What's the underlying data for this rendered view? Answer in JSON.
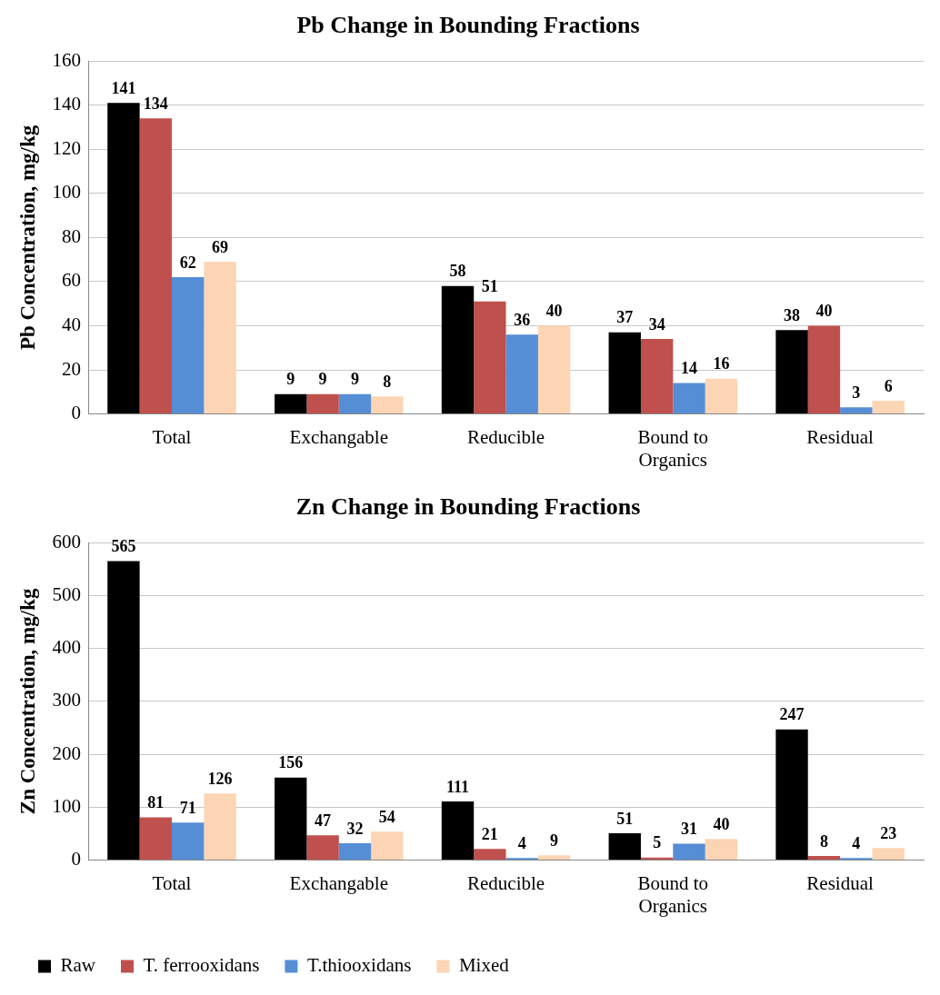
{
  "chart_data": [
    {
      "type": "bar",
      "title": "Pb Change in Bounding Fractions",
      "ylabel": "Pb Concentration, mg/kg",
      "categories": [
        "Total",
        "Exchangable",
        "Reducible",
        "Bound to Organics",
        "Residual"
      ],
      "ylim": [
        0,
        160
      ],
      "yticks": [
        0,
        20,
        40,
        60,
        80,
        100,
        120,
        140,
        160
      ],
      "grid": "y",
      "data_labels": true,
      "legend": false,
      "series": [
        {
          "color": "#000000",
          "values": [
            141,
            9,
            58,
            37,
            38
          ]
        },
        {
          "color": "#c0504d",
          "values": [
            134,
            9,
            51,
            34,
            40
          ]
        },
        {
          "color": "#558ed5",
          "values": [
            62,
            9,
            36,
            14,
            3
          ]
        },
        {
          "color": "#fcd5b5",
          "values": [
            69,
            8,
            40,
            16,
            6
          ]
        }
      ]
    },
    {
      "type": "bar",
      "title": "Zn Change in Bounding Fractions",
      "ylabel": "Zn Concentration, mg/kg",
      "categories": [
        "Total",
        "Exchangable",
        "Reducible",
        "Bound to Organics",
        "Residual"
      ],
      "ylim": [
        0,
        600
      ],
      "yticks": [
        0,
        100,
        200,
        300,
        400,
        500,
        600
      ],
      "grid": "y",
      "data_labels": true,
      "legend": "bottom left",
      "series": [
        {
          "name": "Raw",
          "color": "#000000",
          "values": [
            565,
            156,
            111,
            51,
            247
          ]
        },
        {
          "name": "T. ferrooxidans",
          "color": "#c0504d",
          "values": [
            81,
            47,
            21,
            5,
            8
          ]
        },
        {
          "name": "T.thiooxidans",
          "color": "#558ed5",
          "values": [
            71,
            32,
            4,
            31,
            4
          ]
        },
        {
          "name": "Mixed",
          "color": "#fcd5b5",
          "values": [
            126,
            54,
            9,
            40,
            23
          ]
        }
      ]
    }
  ]
}
